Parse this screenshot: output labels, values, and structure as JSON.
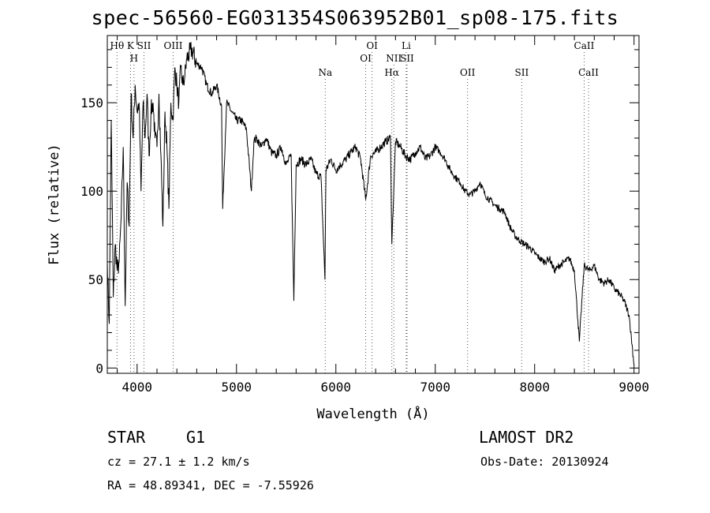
{
  "chart_data": {
    "type": "line",
    "title": "spec-56560-EG031354S063952B01_sp08-175.fits",
    "xlabel": "Wavelength (Å)",
    "ylabel": "Flux (relative)",
    "xlim": [
      3700,
      9050
    ],
    "ylim": [
      -3,
      188
    ],
    "x_ticks": [
      4000,
      5000,
      6000,
      7000,
      8000,
      9000
    ],
    "y_ticks": [
      0,
      50,
      100,
      150
    ],
    "grid": false,
    "series": [
      {
        "x": [
          3700,
          3720,
          3740,
          3760,
          3780,
          3800,
          3820,
          3840,
          3860,
          3880,
          3900,
          3920,
          3940,
          3960,
          3980,
          4000,
          4020,
          4040,
          4060,
          4080,
          4100,
          4120,
          4140,
          4160,
          4180,
          4200,
          4220,
          4240,
          4260,
          4280,
          4300,
          4320,
          4340,
          4360,
          4380,
          4400,
          4420,
          4440,
          4460,
          4480,
          4500,
          4550,
          4600,
          4650,
          4700,
          4750,
          4800,
          4850,
          4861,
          4900,
          4950,
          5000,
          5050,
          5100,
          5150,
          5175,
          5200,
          5250,
          5300,
          5350,
          5400,
          5450,
          5500,
          5550,
          5577,
          5600,
          5650,
          5700,
          5750,
          5800,
          5850,
          5890,
          5900,
          5950,
          6000,
          6050,
          6100,
          6150,
          6200,
          6250,
          6300,
          6350,
          6400,
          6450,
          6500,
          6550,
          6563,
          6600,
          6650,
          6700,
          6750,
          6800,
          6850,
          6900,
          6950,
          7000,
          7050,
          7100,
          7150,
          7200,
          7250,
          7300,
          7350,
          7400,
          7450,
          7500,
          7550,
          7600,
          7650,
          7700,
          7750,
          7800,
          7850,
          7900,
          7950,
          8000,
          8050,
          8100,
          8150,
          8200,
          8250,
          8300,
          8350,
          8400,
          8450,
          8498,
          8550,
          8600,
          8650,
          8700,
          8750,
          8800,
          8850,
          8900,
          8950,
          9000
        ],
        "y": [
          60,
          25,
          140,
          40,
          70,
          55,
          60,
          85,
          125,
          35,
          105,
          80,
          155,
          130,
          160,
          145,
          150,
          100,
          150,
          130,
          155,
          120,
          145,
          150,
          130,
          125,
          155,
          120,
          80,
          145,
          125,
          90,
          150,
          140,
          170,
          160,
          150,
          170,
          160,
          165,
          175,
          180,
          172,
          170,
          160,
          155,
          160,
          148,
          90,
          150,
          145,
          140,
          140,
          135,
          100,
          128,
          130,
          125,
          130,
          122,
          120,
          125,
          115,
          120,
          38,
          115,
          118,
          115,
          118,
          110,
          108,
          50,
          112,
          118,
          112,
          115,
          118,
          122,
          125,
          118,
          95,
          120,
          122,
          125,
          128,
          130,
          70,
          128,
          125,
          120,
          118,
          122,
          125,
          118,
          120,
          125,
          122,
          118,
          112,
          108,
          105,
          100,
          98,
          100,
          105,
          98,
          95,
          92,
          90,
          88,
          80,
          75,
          72,
          70,
          68,
          65,
          62,
          60,
          62,
          55,
          58,
          60,
          62,
          55,
          15,
          58,
          55,
          58,
          50,
          48,
          50,
          45,
          42,
          38,
          30,
          2
        ]
      }
    ],
    "lines_upper": [
      {
        "label": "Hθ",
        "x": 3798
      },
      {
        "label": "K",
        "x": 3934
      },
      {
        "label": "SII",
        "x": 4069
      },
      {
        "label": "OIII",
        "x": 4363
      },
      {
        "label": "OI",
        "x": 6364
      },
      {
        "label": "Li",
        "x": 6708
      },
      {
        "label": "CaII",
        "x": 8498
      }
    ],
    "lines_mid": [
      {
        "label": "H",
        "x": 3969
      },
      {
        "label": "OI",
        "x": 6300
      },
      {
        "label": "NII",
        "x": 6583
      },
      {
        "label": "SII",
        "x": 6716
      }
    ],
    "lines_lower": [
      {
        "label": "Na",
        "x": 5893
      },
      {
        "label": "Hα",
        "x": 6563
      },
      {
        "label": "OII",
        "x": 7325
      },
      {
        "label": "SII",
        "x": 7870
      },
      {
        "label": "CaII",
        "x": 8542
      }
    ]
  },
  "footer": {
    "class": "STAR",
    "subclass": "G1",
    "survey": "LAMOST DR2",
    "cz": "cz = 27.1 ± 1.2 km/s",
    "obs_date": "Obs-Date: 20130924",
    "coords": "RA =  48.89341, DEC =  -7.55926"
  }
}
